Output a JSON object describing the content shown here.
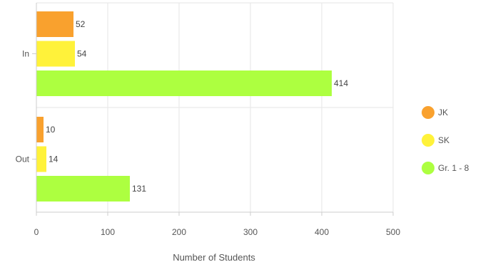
{
  "chart_data": {
    "type": "bar",
    "orientation": "horizontal",
    "categories": [
      "In",
      "Out"
    ],
    "series": [
      {
        "name": "JK",
        "values": [
          52,
          10
        ],
        "color": "#F9A12E"
      },
      {
        "name": "SK",
        "values": [
          54,
          14
        ],
        "color": "#FFF23A"
      },
      {
        "name": "Gr. 1 - 8",
        "values": [
          414,
          131
        ],
        "color": "#ADFF40"
      }
    ],
    "xlabel": "Number of Students",
    "ylabel": "",
    "xlim": [
      0,
      500
    ],
    "xticks": [
      0,
      100,
      200,
      300,
      400,
      500
    ],
    "grid": true,
    "data_labels": true,
    "legend_position": "right"
  }
}
